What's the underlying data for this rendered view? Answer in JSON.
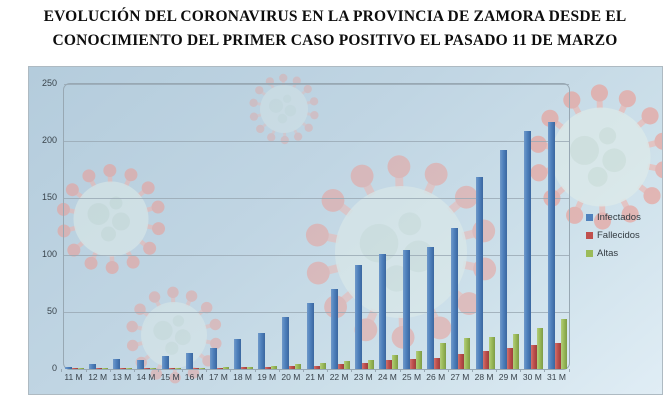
{
  "page": {
    "title_line1": "EVOLUCIÓN DEL CORONAVIRUS EN LA PROVINCIA DE ZAMORA DESDE EL",
    "title_line2": "CONOCIMIENTO DEL PRIMER CASO POSITIVO EL PASADO 11 DE MARZO"
  },
  "chart_data": {
    "type": "bar",
    "title": "",
    "xlabel": "",
    "ylabel": "",
    "categories": [
      "11 M",
      "12 M",
      "13 M",
      "14 M",
      "15 M",
      "16 M",
      "17 M",
      "18 M",
      "19 M",
      "20 M",
      "21 M",
      "22 M",
      "23 M",
      "24 M",
      "25 M",
      "26 M",
      "27 M",
      "28 M",
      "29 M",
      "30 M",
      "31 M"
    ],
    "series": [
      {
        "name": "Infectados",
        "color": "#4f81bd",
        "values": [
          2,
          4,
          9,
          8,
          11,
          14,
          18,
          26,
          32,
          46,
          58,
          70,
          91,
          101,
          104,
          107,
          124,
          168,
          192,
          209,
          217
        ]
      },
      {
        "name": "Fallecidos",
        "color": "#c0504d",
        "values": [
          0,
          0,
          1,
          1,
          1,
          1,
          1,
          2,
          2,
          3,
          3,
          4,
          5,
          8,
          9,
          10,
          13,
          16,
          18,
          21,
          23
        ]
      },
      {
        "name": "Altas",
        "color": "#9bbb59",
        "values": [
          0,
          0,
          1,
          1,
          1,
          1,
          2,
          2,
          3,
          4,
          5,
          7,
          8,
          12,
          16,
          23,
          27,
          28,
          31,
          36,
          44
        ]
      }
    ],
    "ylim": [
      0,
      250
    ],
    "yticks": [
      0,
      50,
      100,
      150,
      200,
      250
    ],
    "grid": true,
    "legend_position": "right",
    "background_note": "light blue panel with faint coronavirus particle imagery"
  }
}
